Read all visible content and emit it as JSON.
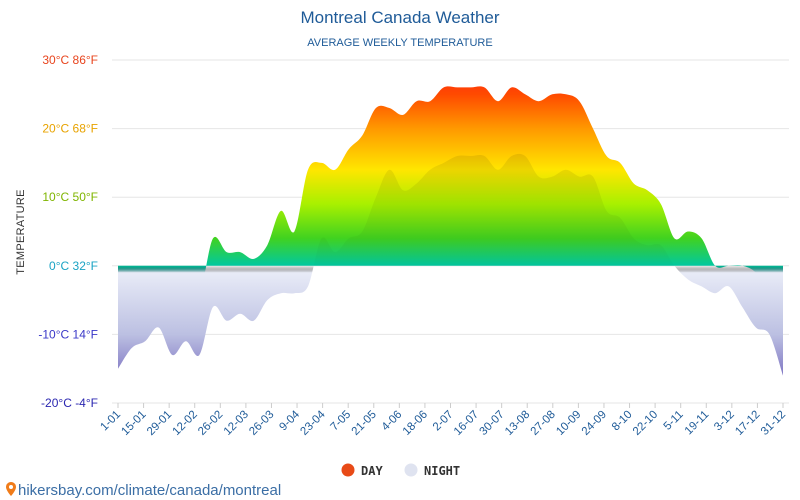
{
  "chart_data": {
    "type": "area",
    "title": "Montreal Canada Weather",
    "subtitle": "AVERAGE WEEKLY TEMPERATURE",
    "ylabel": "TEMPERATURE",
    "ylim": [
      -20,
      30
    ],
    "yticks": [
      {
        "value": 30,
        "label": "30°C 86°F",
        "color": "#e8451e"
      },
      {
        "value": 20,
        "label": "20°C 68°F",
        "color": "#e8a300"
      },
      {
        "value": 10,
        "label": "10°C 50°F",
        "color": "#7fb500"
      },
      {
        "value": 0,
        "label": "0°C 32°F",
        "color": "#1aa3c4"
      },
      {
        "value": -10,
        "label": "-10°C 14°F",
        "color": "#3a38c8"
      },
      {
        "value": -20,
        "label": "-20°C -4°F",
        "color": "#2a26b0"
      }
    ],
    "xticks": [
      "1-01",
      "15-01",
      "29-01",
      "12-02",
      "26-02",
      "12-03",
      "26-03",
      "9-04",
      "23-04",
      "7-05",
      "21-05",
      "4-06",
      "18-06",
      "2-07",
      "16-07",
      "30-07",
      "13-08",
      "27-08",
      "10-09",
      "24-09",
      "8-10",
      "22-10",
      "5-11",
      "19-11",
      "3-12",
      "17-12",
      "31-12"
    ],
    "series": [
      {
        "name": "DAY",
        "values": [
          -6,
          -3,
          -4,
          -2,
          -4,
          -2,
          -4,
          4,
          2,
          2,
          1,
          3,
          8,
          5,
          14,
          15,
          14,
          17,
          19,
          23,
          23,
          22,
          24,
          24,
          26,
          26,
          26,
          26,
          24,
          26,
          25,
          24,
          25,
          25,
          24,
          20,
          16,
          15,
          12,
          11,
          9,
          4,
          5,
          4,
          0,
          0,
          0,
          -1,
          -4,
          -8
        ]
      },
      {
        "name": "NIGHT",
        "values": [
          -15,
          -12,
          -11,
          -9,
          -13,
          -11,
          -13,
          -6,
          -8,
          -7,
          -8,
          -5,
          -4,
          -4,
          -3,
          4,
          2,
          4,
          5,
          10,
          14,
          11,
          12,
          14,
          15,
          16,
          16,
          16,
          14,
          16,
          16,
          13,
          13,
          14,
          13,
          13,
          8,
          7,
          4,
          3,
          3,
          0,
          -2,
          -3,
          -4,
          -3,
          -6,
          -9,
          -10,
          -16
        ]
      }
    ],
    "legend": "bottom-center",
    "grid": true
  },
  "legend": {
    "day_label": "DAY",
    "night_label": "NIGHT",
    "day_color": "#e84a17",
    "night_color": "#dfe3f0"
  },
  "footer": {
    "text": "hikersbay.com/climate/canada/montreal"
  }
}
